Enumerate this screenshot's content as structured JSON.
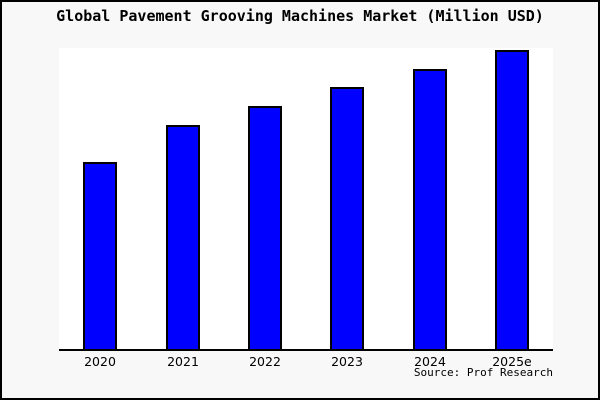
{
  "title": "Global Pavement Grooving Machines Market (Million USD)",
  "source": "Source: Prof Research",
  "colors": {
    "bar_fill": "#0000FF",
    "bar_edge": "#000000",
    "plot_background": "#FFFFFF",
    "canvas_background": "#F8F8F8",
    "frame_border": "#000000",
    "axis_line": "#000000",
    "text": "#000000"
  },
  "chart_data": {
    "type": "bar",
    "title": "Global Pavement Grooving Machines Market (Million USD)",
    "categories": [
      "2020",
      "2021",
      "2022",
      "2023",
      "2024",
      "2025e"
    ],
    "values": [
      62.5,
      74.9,
      81.3,
      87.6,
      93.6,
      100
    ],
    "value_scale": "relative index, 2025e = 100 (y-axis has no tick labels in source image)",
    "unit": "Million USD",
    "xlabel": "",
    "ylabel": "",
    "ylim": [
      0,
      100.7
    ],
    "y_axis_ticks_visible": false,
    "gridlines": false,
    "legend": false,
    "annotation": "Source: Prof Research"
  }
}
